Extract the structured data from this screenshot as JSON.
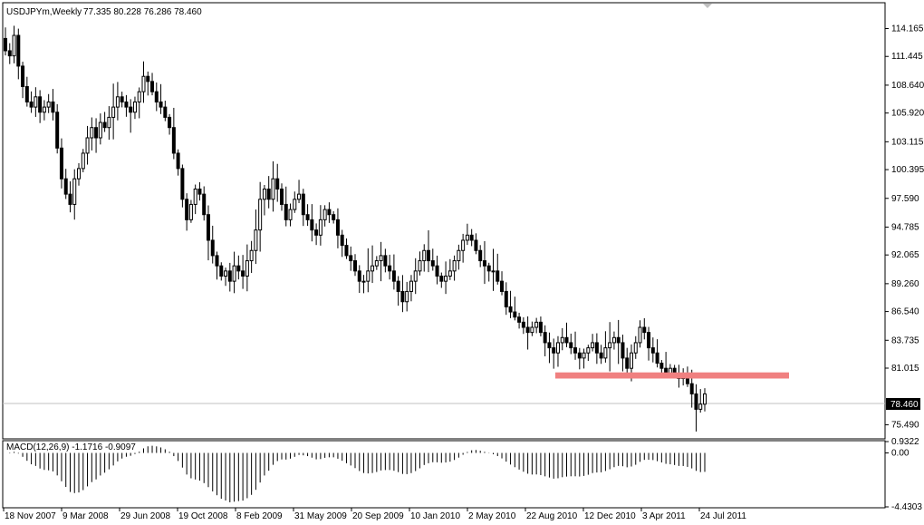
{
  "header": {
    "symbol": "USDJPYm,Weekly",
    "ohlc": "77.335 80.228 76.286 78.460"
  },
  "chart_data": [
    {
      "type": "candlestick",
      "title": "USDJPYm,Weekly",
      "ylim": [
        74.2,
        116.6
      ],
      "y_ticks": [
        "114.165",
        "111.445",
        "108.640",
        "105.920",
        "103.115",
        "100.395",
        "97.590",
        "94.785",
        "92.065",
        "89.260",
        "86.540",
        "83.735",
        "81.015",
        "78.460",
        "75.490"
      ],
      "current_price": "78.460",
      "x_ticks": [
        "18 Nov 2007",
        "9 Mar 2008",
        "29 Jun 2008",
        "19 Oct 2008",
        "8 Feb 2009",
        "31 May 2009",
        "20 Sep 2009",
        "10 Jan 2010",
        "2 May 2010",
        "22 Aug 2010",
        "12 Dec 2010",
        "3 Apr 2011",
        "24 Jul 2011"
      ],
      "weekly_close_path": [
        112.0,
        111.5,
        113.5,
        110.5,
        108.5,
        107.0,
        106.5,
        107.5,
        106.0,
        106.5,
        107.0,
        106.0,
        102.5,
        99.5,
        98.0,
        97.0,
        99.5,
        100.5,
        102.0,
        103.5,
        104.5,
        103.5,
        105.0,
        104.5,
        105.5,
        106.5,
        107.5,
        107.0,
        106.5,
        106.0,
        107.0,
        108.0,
        109.5,
        109.0,
        108.0,
        107.0,
        106.5,
        105.5,
        104.5,
        102.0,
        100.5,
        97.5,
        95.5,
        97.0,
        98.5,
        98.0,
        96.0,
        93.5,
        92.0,
        91.0,
        90.0,
        90.5,
        89.5,
        91.0,
        90.5,
        90.0,
        91.5,
        92.5,
        94.5,
        97.5,
        98.5,
        97.5,
        99.5,
        98.5,
        97.0,
        95.5,
        96.5,
        97.5,
        98.0,
        96.0,
        95.5,
        94.5,
        94.0,
        95.5,
        96.5,
        96.0,
        95.5,
        94.0,
        93.0,
        92.0,
        91.5,
        90.5,
        89.5,
        89.5,
        90.5,
        91.0,
        91.5,
        92.0,
        91.0,
        90.5,
        89.5,
        88.5,
        87.5,
        88.5,
        89.5,
        90.5,
        91.5,
        92.5,
        91.5,
        91.0,
        90.0,
        89.5,
        90.0,
        90.5,
        91.5,
        92.5,
        93.5,
        94.0,
        93.5,
        92.5,
        91.5,
        91.0,
        90.5,
        90.5,
        89.5,
        88.5,
        87.0,
        86.5,
        86.0,
        85.5,
        85.0,
        84.5,
        85.0,
        85.5,
        84.5,
        83.5,
        83.0,
        82.5,
        83.5,
        84.0,
        83.5,
        83.0,
        82.5,
        82.0,
        82.5,
        83.0,
        83.5,
        82.5,
        82.0,
        83.0,
        83.5,
        84.0,
        83.5,
        82.0,
        81.0,
        82.5,
        83.5,
        85.0,
        84.5,
        83.0,
        82.5,
        81.5,
        81.0,
        80.5,
        81.0,
        80.5,
        80.0,
        80.5,
        79.5,
        78.5,
        77.0,
        77.5,
        78.5
      ],
      "support_zone": [
        80.0,
        80.6
      ],
      "support_zone_color": "#f08080",
      "candle_color": "#000000"
    },
    {
      "type": "histogram",
      "title": "MACD(12,26,9) -1.1716 -0.9097",
      "ylim": [
        -4.4303,
        0.9322
      ],
      "y_ticks": [
        "0.9322",
        "0.00",
        "-4.4303"
      ],
      "bar_color": "#000000"
    }
  ]
}
